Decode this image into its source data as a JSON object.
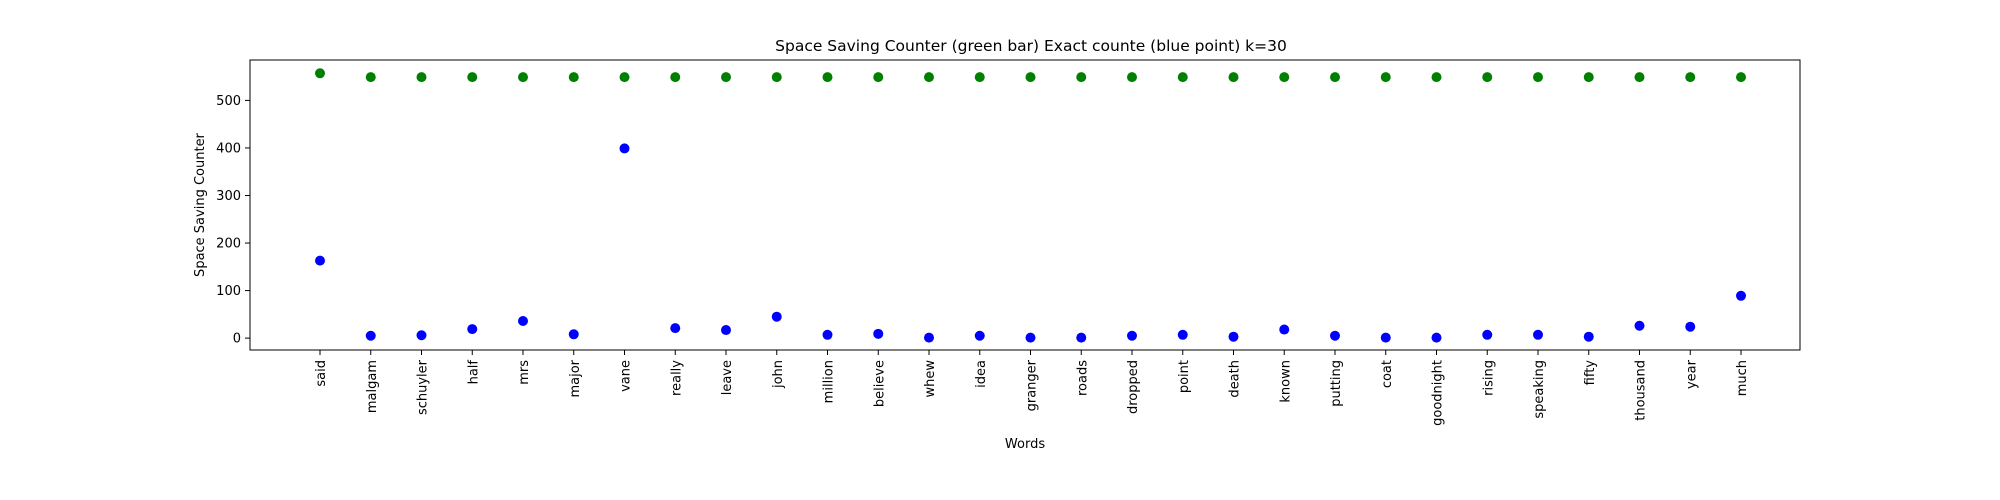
{
  "chart_data": {
    "type": "scatter",
    "title": "Space Saving Counter (green bar)  Exact counte (blue point) k=30",
    "xlabel": "Words",
    "ylabel": "Space Saving Counter",
    "categories": [
      "said",
      "malgam",
      "schuyler",
      "half",
      "mrs",
      "major",
      "vane",
      "really",
      "leave",
      "john",
      "million",
      "believe",
      "whew",
      "idea",
      "granger",
      "roads",
      "dropped",
      "point",
      "death",
      "known",
      "putting",
      "coat",
      "goodnight",
      "rising",
      "speaking",
      "fifty",
      "thousand",
      "year",
      "much"
    ],
    "y_ticks": [
      0,
      100,
      200,
      300,
      400,
      500
    ],
    "ylim": [
      -25,
      585
    ],
    "grid": false,
    "legend": "none",
    "series": [
      {
        "color": "#008000",
        "values": [
          557,
          549,
          549,
          549,
          549,
          549,
          549,
          549,
          549,
          549,
          549,
          549,
          549,
          549,
          549,
          549,
          549,
          549,
          549,
          549,
          549,
          549,
          549,
          549,
          549,
          549,
          549,
          549,
          549
        ]
      },
      {
        "color": "#0000ff",
        "values": [
          163,
          5,
          6,
          19,
          36,
          8,
          399,
          21,
          17,
          45,
          7,
          9,
          1,
          5,
          1,
          1,
          5,
          7,
          3,
          18,
          5,
          1,
          1,
          7,
          7,
          3,
          26,
          24,
          89
        ]
      }
    ]
  }
}
